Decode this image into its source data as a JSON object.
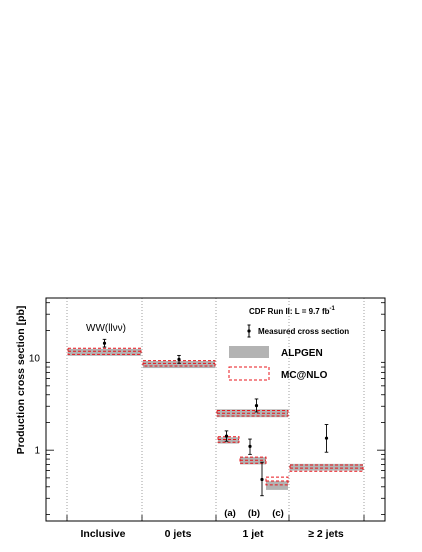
{
  "chart_data": {
    "type": "bar",
    "ylabel": "Production cross section [pb]",
    "yscale": "log",
    "ylim": [
      0.17,
      45
    ],
    "ytick_labels": [
      "1",
      "10"
    ],
    "categories": [
      "Inclusive",
      "0 jets",
      "1 jet",
      "≥ 2 jets"
    ],
    "subcategory_labels": [
      "(a)",
      "(b)",
      "(c)"
    ],
    "header": "CDF Run II: L = 9.7 fb",
    "header_superscript": "-1",
    "process_label": "WW(llνν)",
    "legend": {
      "placement": "top-right",
      "entries": [
        "Measured cross section",
        "ALPGEN",
        "MC@NLO"
      ]
    },
    "series": [
      {
        "name": "Measured cross section",
        "style": "points-with-error-bars",
        "color": "#000000",
        "points": [
          {
            "bin": "Inclusive",
            "value": 14.5,
            "err_low": 1.3,
            "err_high": 1.5
          },
          {
            "bin": "0 jets",
            "value": 9.7,
            "err_low": 0.9,
            "err_high": 1.0
          },
          {
            "bin": "1 jet",
            "value": 3.05,
            "err_low": 0.45,
            "err_high": 0.55
          },
          {
            "bin": "1 jet (a)",
            "value": 1.42,
            "err_low": 0.17,
            "err_high": 0.2
          },
          {
            "bin": "1 jet (b)",
            "value": 1.1,
            "err_low": 0.2,
            "err_high": 0.22
          },
          {
            "bin": "1 jet (c)",
            "value": 0.48,
            "err_low": 0.16,
            "err_high": 0.26
          },
          {
            "bin": "≥ 2 jets",
            "value": 1.35,
            "err_low": 0.4,
            "err_high": 0.55
          }
        ]
      },
      {
        "name": "ALPGEN",
        "style": "grey-band",
        "color": "#b3b3b3",
        "bands": [
          {
            "bin": "Inclusive",
            "low": 10.6,
            "high": 12.6
          },
          {
            "bin": "0 jets",
            "low": 7.8,
            "high": 9.3
          },
          {
            "bin": "1 jet",
            "low": 2.28,
            "high": 2.78
          },
          {
            "bin": "1 jet (a)",
            "low": 1.18,
            "high": 1.38
          },
          {
            "bin": "1 jet (b)",
            "low": 0.7,
            "high": 0.84
          },
          {
            "bin": "1 jet (c)",
            "low": 0.37,
            "high": 0.46
          },
          {
            "bin": "≥ 2 jets",
            "low": 0.6,
            "high": 0.71
          }
        ]
      },
      {
        "name": "MC@NLO",
        "style": "red-dashed-band",
        "color": "#e8151b",
        "bands": [
          {
            "bin": "Inclusive",
            "low": 11.0,
            "high": 12.8
          },
          {
            "bin": "0 jets",
            "low": 8.2,
            "high": 9.4
          },
          {
            "bin": "1 jet",
            "low": 2.35,
            "high": 2.7
          },
          {
            "bin": "1 jet (a)",
            "low": 1.22,
            "high": 1.4
          },
          {
            "bin": "1 jet (b)",
            "low": 0.72,
            "high": 0.84
          },
          {
            "bin": "1 jet (c)",
            "low": 0.42,
            "high": 0.51
          },
          {
            "bin": "≥ 2 jets",
            "low": 0.59,
            "high": 0.69
          }
        ]
      }
    ]
  }
}
